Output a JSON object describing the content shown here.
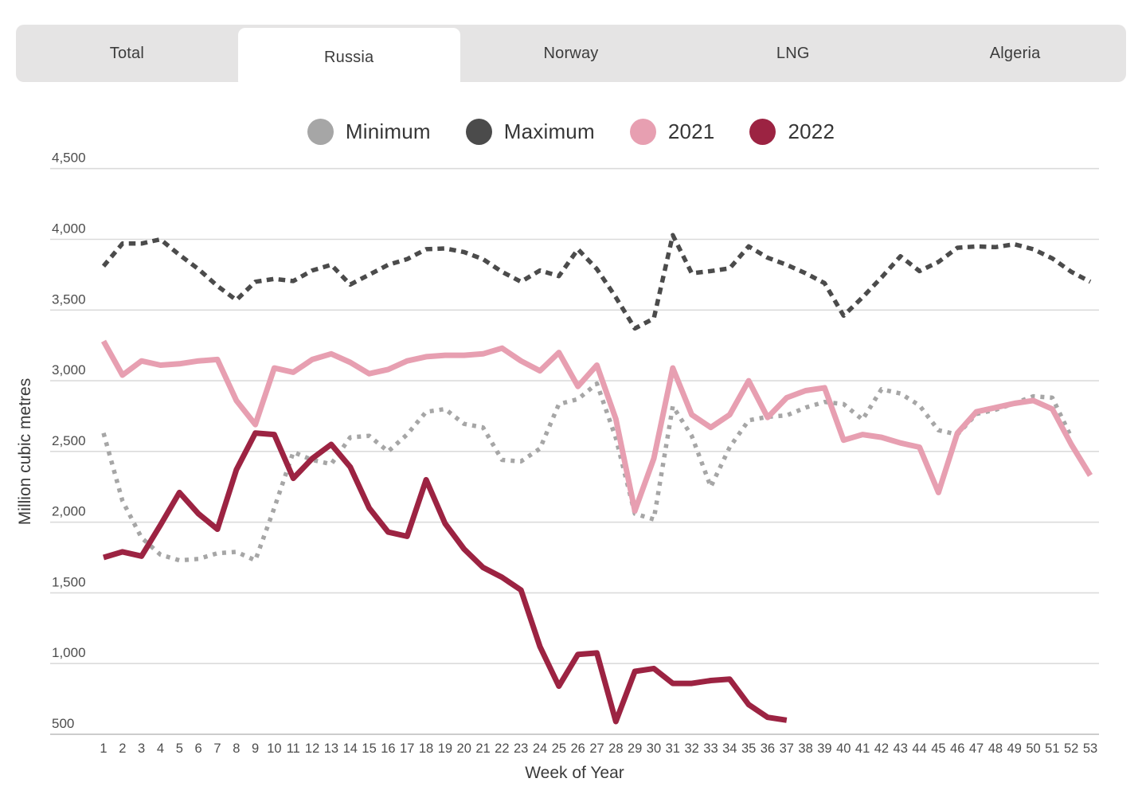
{
  "tabs": {
    "items": [
      {
        "label": "Total",
        "active": false
      },
      {
        "label": "Russia",
        "active": true
      },
      {
        "label": "Norway",
        "active": false
      },
      {
        "label": "LNG",
        "active": false
      },
      {
        "label": "Algeria",
        "active": false
      }
    ]
  },
  "legend": {
    "items": [
      {
        "label": "Minimum",
        "color": "#a6a6a6"
      },
      {
        "label": "Maximum",
        "color": "#4b4b4b"
      },
      {
        "label": "2021",
        "color": "#e79fb1"
      },
      {
        "label": "2022",
        "color": "#9c2342"
      }
    ]
  },
  "chart_data": {
    "type": "line",
    "title": "",
    "xlabel": "Week of Year",
    "ylabel": "Million cubic metres",
    "x": [
      1,
      2,
      3,
      4,
      5,
      6,
      7,
      8,
      9,
      10,
      11,
      12,
      13,
      14,
      15,
      16,
      17,
      18,
      19,
      20,
      21,
      22,
      23,
      24,
      25,
      26,
      27,
      28,
      29,
      30,
      31,
      32,
      33,
      34,
      35,
      36,
      37,
      38,
      39,
      40,
      41,
      42,
      43,
      44,
      45,
      46,
      47,
      48,
      49,
      50,
      51,
      52,
      53
    ],
    "ylim": [
      500,
      4500
    ],
    "y_ticks": [
      500,
      1000,
      1500,
      2000,
      2500,
      3000,
      3500,
      4000,
      4500
    ],
    "grid": true,
    "legend_position": "top",
    "series": [
      {
        "name": "Minimum",
        "style": "dotted",
        "color": "#a6a6a6",
        "start_week": 1,
        "values": [
          2630,
          2150,
          1890,
          1770,
          1730,
          1740,
          1780,
          1790,
          1730,
          2100,
          2495,
          2440,
          2410,
          2600,
          2610,
          2500,
          2620,
          2780,
          2800,
          2695,
          2670,
          2440,
          2430,
          2520,
          2835,
          2870,
          2980,
          2595,
          2060,
          2020,
          2820,
          2610,
          2250,
          2530,
          2720,
          2745,
          2755,
          2810,
          2850,
          2835,
          2725,
          2940,
          2910,
          2825,
          2650,
          2620,
          2765,
          2795,
          2840,
          2890,
          2880,
          2600
        ]
      },
      {
        "name": "Maximum",
        "style": "dashed",
        "color": "#4b4b4b",
        "start_week": 1,
        "values": [
          3810,
          3970,
          3970,
          4000,
          3890,
          3790,
          3670,
          3570,
          3700,
          3720,
          3705,
          3780,
          3820,
          3680,
          3750,
          3820,
          3860,
          3930,
          3935,
          3910,
          3860,
          3770,
          3700,
          3780,
          3740,
          3930,
          3790,
          3590,
          3370,
          3440,
          4030,
          3760,
          3775,
          3795,
          3950,
          3870,
          3820,
          3760,
          3690,
          3460,
          3590,
          3730,
          3880,
          3775,
          3840,
          3940,
          3950,
          3945,
          3965,
          3930,
          3865,
          3770,
          3700
        ]
      },
      {
        "name": "2021",
        "style": "solid",
        "color": "#e79fb1",
        "start_week": 1,
        "values": [
          3280,
          3040,
          3140,
          3110,
          3120,
          3140,
          3150,
          2860,
          2690,
          3090,
          3060,
          3150,
          3190,
          3130,
          3050,
          3080,
          3140,
          3170,
          3180,
          3180,
          3190,
          3230,
          3140,
          3070,
          3200,
          2960,
          3110,
          2730,
          2080,
          2450,
          3090,
          2760,
          2670,
          2760,
          3000,
          2740,
          2880,
          2930,
          2950,
          2580,
          2620,
          2600,
          2560,
          2530,
          2210,
          2630,
          2780,
          2810,
          2840,
          2860,
          2800,
          2550,
          2330
        ]
      },
      {
        "name": "2022",
        "style": "solid",
        "color": "#9c2342",
        "start_week": 1,
        "values": [
          1750,
          1790,
          1760,
          1980,
          2210,
          2060,
          1950,
          2370,
          2630,
          2620,
          2310,
          2450,
          2550,
          2390,
          2100,
          1930,
          1900,
          2300,
          1990,
          1810,
          1680,
          1610,
          1520,
          1120,
          840,
          1065,
          1075,
          590,
          945,
          965,
          860,
          860,
          880,
          890,
          710,
          620,
          600
        ]
      }
    ]
  },
  "style": {
    "gridline_color": "#dbdbdb",
    "axisline_color": "#cccccc",
    "tick_color": "#4d4d4d",
    "axis_title_color": "#3a3a3a"
  }
}
